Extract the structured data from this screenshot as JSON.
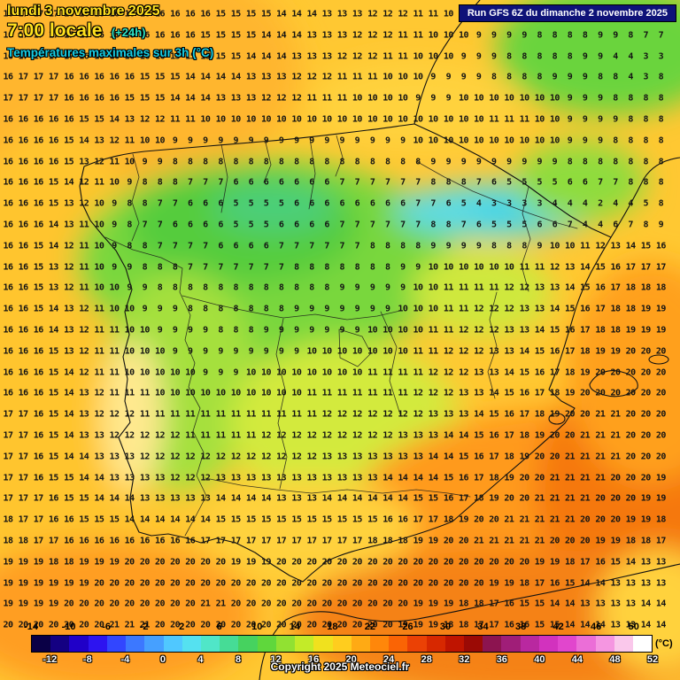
{
  "header": {
    "date_line": "lundi 3 novembre 2025",
    "time_line": "7:00 locale",
    "offset": "(+24h)",
    "subtitle": "Températures maximales sur 3h (°C)"
  },
  "run_info": "Run GFS 6Z du dimanche 2 novembre 2025",
  "copyright": "Copyright 2025 Meteociel.fr",
  "unit_label": "(°C)",
  "colors": {
    "date_text": "#ffe11e",
    "offset_text": "#2ee6c8",
    "subtitle_text": "#16cfe6",
    "run_box_bg": "#0e1278",
    "run_box_text": "#ffffff"
  },
  "scale": {
    "min": -14,
    "max": 52,
    "step": 2,
    "top_labels": [
      -14,
      -10,
      -6,
      -2,
      2,
      6,
      10,
      14,
      18,
      22,
      26,
      30,
      34,
      38,
      42,
      46,
      50
    ],
    "bottom_labels": [
      -12,
      -8,
      -4,
      0,
      4,
      8,
      12,
      16,
      20,
      24,
      28,
      32,
      36,
      40,
      44,
      48,
      52
    ],
    "colors": [
      "#0a0046",
      "#140082",
      "#2000c8",
      "#2d14f0",
      "#3246ff",
      "#3c78ff",
      "#46a0ff",
      "#50c8ff",
      "#55e1f0",
      "#50e6c8",
      "#46dc96",
      "#46d25f",
      "#5fd73c",
      "#91e132",
      "#c3eb28",
      "#f0e11e",
      "#ffcd1e",
      "#ffaa14",
      "#ff870a",
      "#fa6405",
      "#eb4105",
      "#d72800",
      "#bf1400",
      "#9b0a05",
      "#8c1450",
      "#a01e78",
      "#b928a0",
      "#d232be",
      "#e146cd",
      "#eb6ed7",
      "#f596e1",
      "#fac8eb",
      "#ffffff"
    ]
  },
  "temperature_grid": {
    "rows": [
      "16 17 17 17 16 16 16 16 16 16 16 16 16 16 15 15 15 15 14 14 14 13 13 13 12 12 12 11 11 10 10 10 9 9 9 8 8 8 9 9 9 8 8 8",
      "16 17 17 17 17 16 16 16 16 16 16 16 16 15 15 15 15 14 14 14 13 13 13 12 12 12 11 11 10 10 10 9 9 9 9 8 8 8 8 9 9 8 7 7",
      "16 17 17 17 17 16 16 16 16 16 16 15 15 15 15 15 14 14 14 13 13 13 12 12 12 11 11 10 10 10 9 9 9 8 8 8 8 8 9 9 4 4 3 3",
      "16 17 17 17 16 16 16 16 16 15 15 15 14 14 14 14 13 13 13 12 12 12 11 11 11 10 10 10 9 9 9 9 8 8 8 8 9 9 9 8 8 4 3 8",
      "17 17 17 17 16 16 16 16 15 15 15 14 14 14 13 13 13 12 12 12 11 11 11 10 10 10 10 9 9 9 10 10 10 10 10 10 10 9 9 9 8 8 8 8",
      "16 16 16 16 16 15 15 14 13 12 12 11 11 10 10 10 10 10 10 10 10 10 10 10 10 10 10 10 10 10 10 10 11 11 11 10 10 9 9 9 9 8 8 8",
      "16 16 16 16 15 14 13 12 11 10 10 9 9 9 9 9 9 9 9 9 9 9 9 9 9 9 9 10 10 10 10 10 10 10 10 10 10 9 9 9 8 8 8 8",
      "16 16 16 16 15 13 12 11 10 9 9 8 8 8 8 8 8 8 8 8 8 8 8 8 8 8 8 8 9 9 9 9 9 9 9 9 9 8 8 8 8 8 8 8",
      "16 16 16 15 14 12 11 10 9 8 8 8 7 7 7 6 6 6 6 6 6 6 7 7 7 7 7 7 8 8 8 7 6 5 5 5 5 6 6 7 7 8 8 8",
      "16 16 16 15 13 12 10 9 8 8 7 7 6 6 6 5 5 5 5 6 6 6 6 6 6 6 6 7 7 6 5 4 3 3 3 3 4 4 4 2 4 4 5 8",
      "16 16 16 14 13 11 10 9 8 7 7 6 6 6 6 5 5 5 6 6 6 6 7 7 7 7 7 7 8 8 7 6 5 5 5 6 6 7 4 4 6 7 8 9",
      "16 16 15 14 12 11 10 9 8 8 7 7 7 7 6 6 6 6 7 7 7 7 7 7 8 8 8 8 9 9 9 9 8 8 8 9 10 10 11 12 13 14 15 16",
      "16 16 15 13 12 11 10 9 9 8 8 8 7 7 7 7 7 7 7 8 8 8 8 8 8 8 9 9 10 10 10 10 10 10 11 11 12 13 14 15 16 17 17 17",
      "16 16 15 13 12 11 10 10 9 9 8 8 8 8 8 8 8 8 8 8 8 8 9 9 9 9 9 10 10 11 11 11 11 12 12 13 13 14 15 16 17 18 18 18",
      "16 16 15 14 13 12 11 10 10 9 9 9 8 8 8 8 8 8 8 9 9 9 9 9 9 9 10 10 10 11 11 12 12 12 13 13 14 15 16 17 18 18 19 19",
      "16 16 16 14 13 12 11 11 10 10 9 9 9 9 8 8 8 9 9 9 9 9 9 9 10 10 10 10 11 11 12 12 12 13 13 14 15 16 17 18 18 19 19 19",
      "16 16 16 15 13 12 11 11 10 10 10 9 9 9 9 9 9 9 9 9 10 10 10 10 10 10 10 11 11 12 12 12 13 13 14 15 16 17 18 19 19 20 20 20",
      "16 16 16 15 14 12 11 11 10 10 10 10 10 9 9 9 10 10 10 10 10 10 10 10 11 11 11 11 12 12 12 13 13 14 15 16 17 18 19 20 20 20 20 20",
      "16 16 16 15 14 13 12 11 11 11 10 10 10 10 10 10 10 10 10 10 11 11 11 11 11 11 11 12 12 12 13 13 14 15 16 17 18 19 20 20 20 20 20 20",
      "17 17 16 15 14 13 12 12 12 11 11 11 11 11 11 11 11 11 11 11 11 12 12 12 12 12 12 12 13 13 13 14 15 16 17 18 19 20 20 21 21 20 20 20",
      "17 17 16 15 14 13 13 12 12 12 12 12 11 11 11 11 11 12 12 12 12 12 12 12 12 12 13 13 13 14 14 15 16 17 18 19 20 20 21 21 21 20 20 20",
      "17 17 16 15 14 14 13 13 13 12 12 12 12 12 12 12 12 12 12 12 12 13 13 13 13 13 13 13 14 14 15 16 17 18 19 20 20 21 21 21 21 20 20 20",
      "17 17 16 15 15 14 14 13 13 13 13 12 12 12 13 13 13 13 13 13 13 13 13 13 13 14 14 14 14 15 16 17 18 19 20 20 21 21 21 21 20 20 20 19",
      "17 17 17 16 15 15 14 14 14 13 13 13 13 13 14 14 14 14 13 13 13 14 14 14 14 14 14 15 15 16 17 18 19 20 20 21 21 21 21 20 20 20 19 19",
      "18 17 17 16 16 15 15 15 14 14 14 14 14 14 15 15 15 15 15 15 15 15 15 15 15 16 16 17 17 18 19 20 20 21 21 21 21 21 20 20 20 19 19 18",
      "18 18 17 17 16 16 16 16 16 16 16 16 16 17 17 17 17 17 17 17 17 17 17 17 18 18 18 19 19 20 20 21 21 21 21 21 20 20 20 19 19 18 18 17",
      "19 19 19 18 18 19 19 19 20 20 20 20 20 20 20 19 19 19 20 20 20 20 20 20 20 20 20 20 20 20 20 20 20 20 20 19 19 18 17 16 15 14 13 13",
      "19 19 19 19 19 19 20 20 20 20 20 20 20 20 20 20 20 20 20 20 20 20 20 20 20 20 20 20 20 20 20 20 19 19 18 17 16 15 14 14 13 13 13 13",
      "19 19 19 19 20 20 20 20 20 20 20 20 20 21 21 20 20 20 20 20 20 20 20 20 20 20 20 19 19 19 18 18 17 16 15 15 14 14 13 13 13 13 14 14",
      "20 20 20 20 20 20 20 21 21 21 20 20 20 20 20 20 20 20 20 20 20 20 20 20 20 20 19 19 19 18 18 17 17 16 16 15 15 14 14 14 13 13 14 14"
    ]
  }
}
